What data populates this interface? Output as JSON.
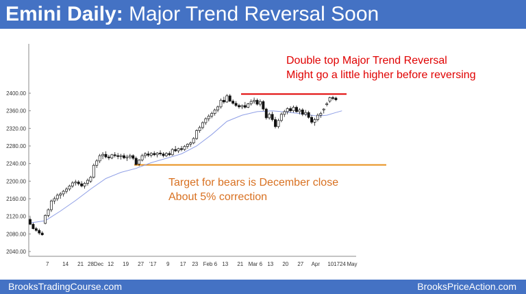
{
  "header": {
    "title_bold": "Emini Daily:",
    "title_rest": "Major Trend Reversal Soon"
  },
  "footer": {
    "left": "BrooksTradingCourse.com",
    "right": "BrooksPriceAction.com"
  },
  "colors": {
    "bar_background": "#4472c4",
    "resistance_line": "#e00000",
    "support_line": "#e8901c",
    "moving_average": "#8f9fe6"
  },
  "chart_data": {
    "type": "candlestick",
    "y_ticks": [
      "2400.00",
      "2360.00",
      "2320.00",
      "2280.00",
      "2240.00",
      "2200.00",
      "2160.00",
      "2120.00",
      "2080.00",
      "2040.00"
    ],
    "ylim": [
      2040,
      2420
    ],
    "x_ticks": [
      "7",
      "14",
      "21",
      "28Dec",
      "12",
      "19",
      "27",
      "'17",
      "9",
      "17",
      "23",
      "Feb 6",
      "13",
      "21",
      "Mar 6",
      "13",
      "20",
      "27",
      "Apr",
      "10",
      "17",
      "24",
      "May"
    ],
    "annotations": [
      {
        "text_lines": [
          "Double top Major Trend Reversal",
          "Might go a little higher before reversing"
        ],
        "color": "#e00000"
      },
      {
        "text_lines": [
          "Target for bears is December close",
          "About 5% correction"
        ],
        "color": "#d87020"
      }
    ],
    "reference_lines": [
      {
        "name": "double-top",
        "value": 2398,
        "color": "#e00000"
      },
      {
        "name": "december-close",
        "value": 2237,
        "color": "#e8901c"
      }
    ],
    "candles": [
      [
        2113,
        2118,
        2100,
        2102
      ],
      [
        2102,
        2105,
        2090,
        2092
      ],
      [
        2092,
        2096,
        2085,
        2088
      ],
      [
        2088,
        2092,
        2078,
        2082
      ],
      [
        2082,
        2086,
        2076,
        2078
      ],
      [
        2104,
        2125,
        2102,
        2122
      ],
      [
        2122,
        2138,
        2118,
        2135
      ],
      [
        2135,
        2158,
        2130,
        2155
      ],
      [
        2155,
        2165,
        2148,
        2160
      ],
      [
        2160,
        2172,
        2155,
        2168
      ],
      [
        2168,
        2175,
        2160,
        2171
      ],
      [
        2171,
        2180,
        2165,
        2177
      ],
      [
        2177,
        2186,
        2172,
        2182
      ],
      [
        2182,
        2192,
        2178,
        2189
      ],
      [
        2189,
        2200,
        2185,
        2196
      ],
      [
        2196,
        2203,
        2190,
        2198
      ],
      [
        2198,
        2202,
        2190,
        2194
      ],
      [
        2194,
        2200,
        2186,
        2189
      ],
      [
        2189,
        2198,
        2183,
        2195
      ],
      [
        2195,
        2206,
        2190,
        2202
      ],
      [
        2200,
        2212,
        2196,
        2209
      ],
      [
        2209,
        2240,
        2206,
        2236
      ],
      [
        2236,
        2250,
        2230,
        2246
      ],
      [
        2246,
        2262,
        2241,
        2258
      ],
      [
        2258,
        2266,
        2250,
        2261
      ],
      [
        2261,
        2268,
        2252,
        2255
      ],
      [
        2255,
        2260,
        2248,
        2253
      ],
      [
        2253,
        2262,
        2250,
        2260
      ],
      [
        2260,
        2266,
        2254,
        2258
      ],
      [
        2258,
        2264,
        2250,
        2256
      ],
      [
        2256,
        2262,
        2249,
        2258
      ],
      [
        2258,
        2263,
        2250,
        2253
      ],
      [
        2253,
        2260,
        2246,
        2255
      ],
      [
        2255,
        2262,
        2250,
        2258
      ],
      [
        2258,
        2261,
        2248,
        2252
      ],
      [
        2252,
        2256,
        2236,
        2238
      ],
      [
        2239,
        2250,
        2234,
        2248
      ],
      [
        2248,
        2262,
        2245,
        2258
      ],
      [
        2258,
        2266,
        2252,
        2262
      ],
      [
        2262,
        2268,
        2255,
        2259
      ],
      [
        2259,
        2266,
        2254,
        2263
      ],
      [
        2263,
        2268,
        2257,
        2260
      ],
      [
        2260,
        2266,
        2254,
        2264
      ],
      [
        2264,
        2270,
        2258,
        2262
      ],
      [
        2262,
        2266,
        2254,
        2258
      ],
      [
        2258,
        2266,
        2255,
        2263
      ],
      [
        2263,
        2268,
        2257,
        2260
      ],
      [
        2260,
        2275,
        2258,
        2272
      ],
      [
        2272,
        2280,
        2266,
        2269
      ],
      [
        2269,
        2276,
        2264,
        2274
      ],
      [
        2274,
        2280,
        2268,
        2272
      ],
      [
        2272,
        2282,
        2269,
        2279
      ],
      [
        2279,
        2286,
        2274,
        2284
      ],
      [
        2284,
        2290,
        2278,
        2287
      ],
      [
        2287,
        2300,
        2284,
        2297
      ],
      [
        2297,
        2318,
        2294,
        2315
      ],
      [
        2315,
        2326,
        2310,
        2322
      ],
      [
        2322,
        2336,
        2318,
        2333
      ],
      [
        2333,
        2345,
        2328,
        2342
      ],
      [
        2342,
        2352,
        2336,
        2348
      ],
      [
        2348,
        2358,
        2343,
        2354
      ],
      [
        2354,
        2365,
        2349,
        2362
      ],
      [
        2362,
        2372,
        2357,
        2369
      ],
      [
        2369,
        2388,
        2365,
        2384
      ],
      [
        2384,
        2392,
        2376,
        2380
      ],
      [
        2380,
        2398,
        2378,
        2394
      ],
      [
        2394,
        2398,
        2380,
        2382
      ],
      [
        2382,
        2386,
        2374,
        2377
      ],
      [
        2377,
        2382,
        2369,
        2372
      ],
      [
        2372,
        2376,
        2365,
        2369
      ],
      [
        2369,
        2374,
        2364,
        2372
      ],
      [
        2372,
        2380,
        2365,
        2368
      ],
      [
        2368,
        2378,
        2366,
        2376
      ],
      [
        2376,
        2386,
        2372,
        2381
      ],
      [
        2381,
        2390,
        2376,
        2384
      ],
      [
        2384,
        2388,
        2372,
        2375
      ],
      [
        2375,
        2386,
        2370,
        2381
      ],
      [
        2381,
        2384,
        2360,
        2364
      ],
      [
        2364,
        2367,
        2340,
        2344
      ],
      [
        2344,
        2356,
        2340,
        2352
      ],
      [
        2352,
        2358,
        2336,
        2340
      ],
      [
        2340,
        2346,
        2320,
        2324
      ],
      [
        2324,
        2342,
        2320,
        2338
      ],
      [
        2338,
        2356,
        2334,
        2352
      ],
      [
        2352,
        2362,
        2346,
        2358
      ],
      [
        2358,
        2368,
        2352,
        2365
      ],
      [
        2365,
        2370,
        2356,
        2360
      ],
      [
        2360,
        2372,
        2356,
        2368
      ],
      [
        2368,
        2372,
        2356,
        2358
      ],
      [
        2358,
        2366,
        2352,
        2362
      ],
      [
        2362,
        2366,
        2348,
        2352
      ],
      [
        2352,
        2362,
        2348,
        2356
      ],
      [
        2356,
        2360,
        2342,
        2345
      ],
      [
        2345,
        2350,
        2330,
        2334
      ],
      [
        2334,
        2344,
        2326,
        2340
      ],
      [
        2340,
        2354,
        2336,
        2350
      ],
      [
        2350,
        2358,
        2344,
        2354
      ],
      [
        2362,
        2366,
        2354,
        2364
      ],
      [
        2374,
        2380,
        2370,
        2376
      ],
      [
        2382,
        2392,
        2378,
        2390
      ],
      [
        2390,
        2394,
        2384,
        2388
      ],
      [
        2389,
        2392,
        2382,
        2385
      ]
    ],
    "moving_average": [
      [
        0,
        2105
      ],
      [
        5,
        2110
      ],
      [
        10,
        2132
      ],
      [
        15,
        2156
      ],
      [
        20,
        2182
      ],
      [
        25,
        2206
      ],
      [
        30,
        2220
      ],
      [
        35,
        2229
      ],
      [
        40,
        2242
      ],
      [
        45,
        2252
      ],
      [
        50,
        2262
      ],
      [
        55,
        2280
      ],
      [
        60,
        2306
      ],
      [
        65,
        2336
      ],
      [
        70,
        2350
      ],
      [
        75,
        2358
      ],
      [
        80,
        2360
      ],
      [
        85,
        2357
      ],
      [
        90,
        2353
      ],
      [
        95,
        2348
      ],
      [
        98,
        2350
      ],
      [
        101,
        2356
      ],
      [
        103,
        2360
      ]
    ]
  }
}
